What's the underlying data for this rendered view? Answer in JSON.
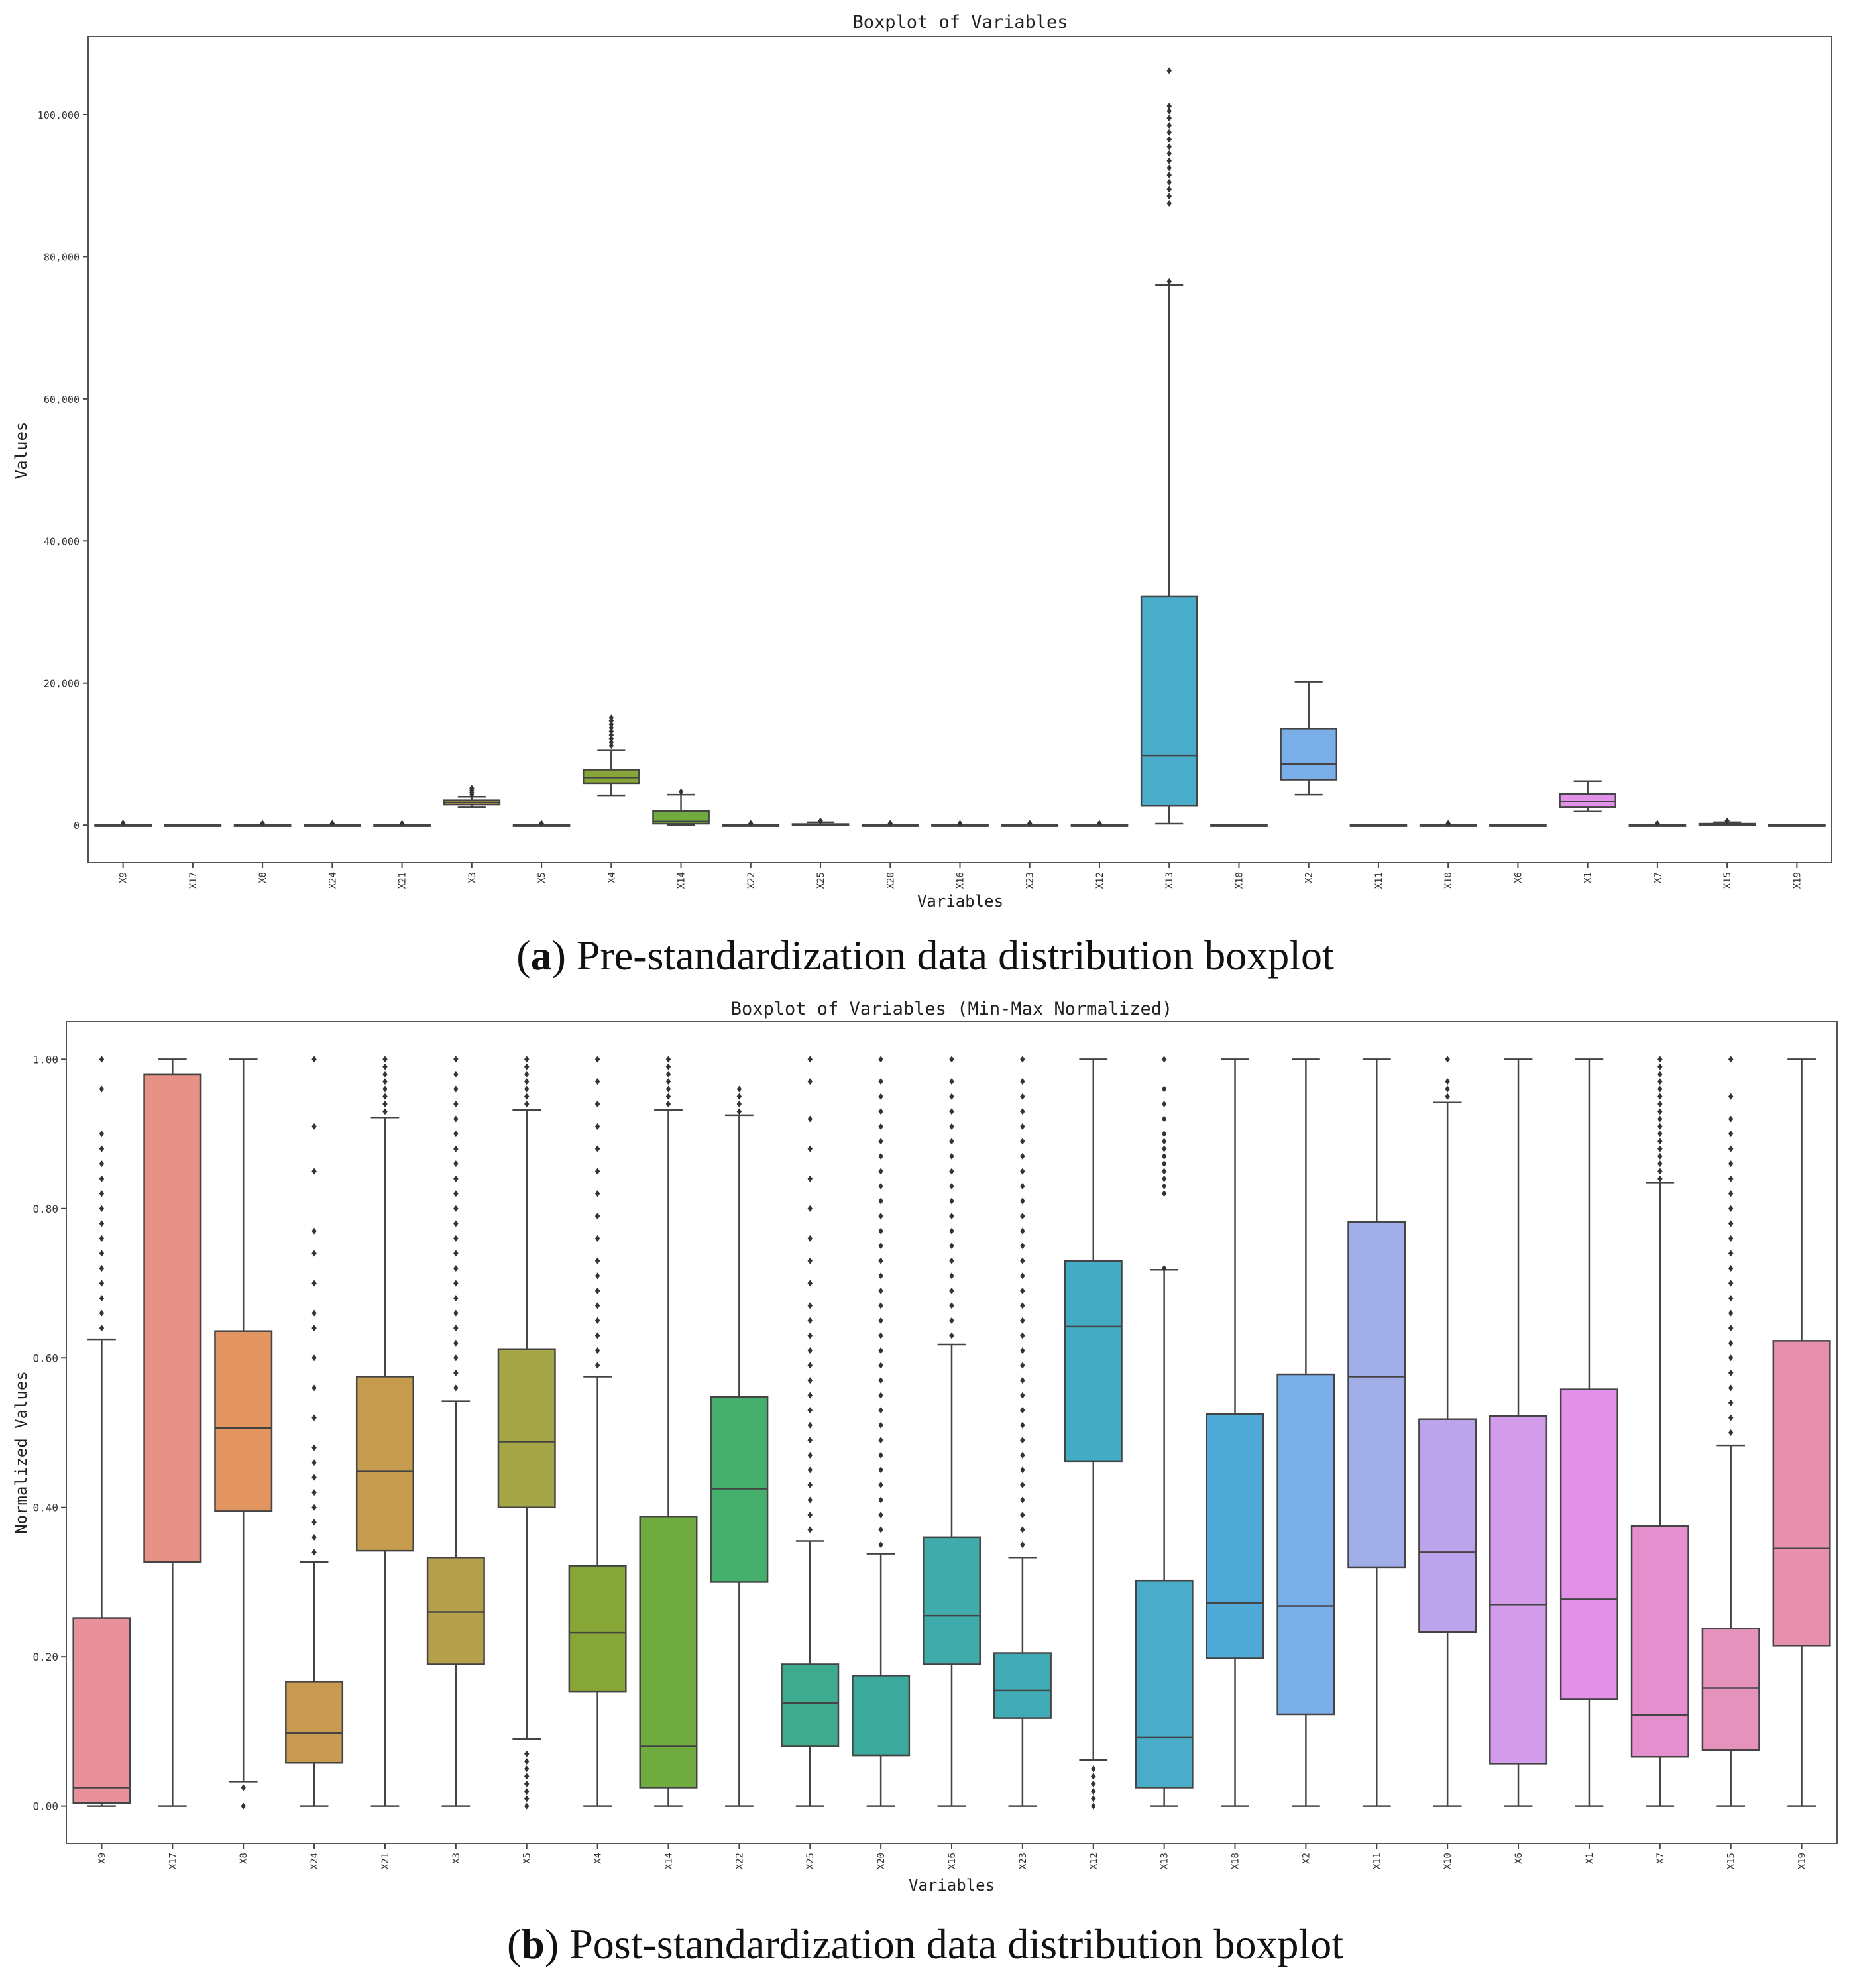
{
  "figure": {
    "caption_a_letter": "a",
    "caption_a_text": "Pre-standardization data distribution boxplot",
    "caption_b_letter": "b",
    "caption_b_text": "Post-standardization data distribution boxplot"
  },
  "chart_data": [
    {
      "id": "a",
      "type": "boxplot",
      "title": "Boxplot of Variables",
      "xlabel": "Variables",
      "ylabel": "Values",
      "ylim": [
        -5300,
        111000
      ],
      "yticks": [
        0,
        20000,
        40000,
        60000,
        80000,
        100000
      ],
      "ytick_labels": [
        "0",
        "20,000",
        "40,000",
        "60,000",
        "80,000",
        "100,000"
      ],
      "categories": [
        "X9",
        "X17",
        "X8",
        "X24",
        "X21",
        "X3",
        "X5",
        "X4",
        "X14",
        "X22",
        "X25",
        "X20",
        "X16",
        "X23",
        "X12",
        "X13",
        "X18",
        "X2",
        "X11",
        "X10",
        "X6",
        "X1",
        "X7",
        "X15",
        "X19"
      ],
      "colors": [
        "#e8919c",
        "#e79187",
        "#e39560",
        "#c99a52",
        "#c59c4e",
        "#b6a04c",
        "#a5a645",
        "#86a638",
        "#6fab3e",
        "#45b06b",
        "#3eab8e",
        "#3ba99b",
        "#40abab",
        "#41acb6",
        "#43abc3",
        "#49acc9",
        "#4fa9d7",
        "#79aee9",
        "#a2aee8",
        "#bca4ea",
        "#d29cea",
        "#e191e8",
        "#e68fcf",
        "#e592bd",
        "#e88fad"
      ],
      "boxes": [
        {
          "min": 0,
          "q1": 0,
          "median": 0,
          "q3": 0,
          "max": 0,
          "outliers": [
            300
          ]
        },
        {
          "min": 0,
          "q1": 0,
          "median": 0,
          "q3": 0,
          "max": 0,
          "outliers": []
        },
        {
          "min": 0,
          "q1": 0,
          "median": 0,
          "q3": 0,
          "max": 0,
          "outliers": [
            250
          ]
        },
        {
          "min": 0,
          "q1": 0,
          "median": 0,
          "q3": 0,
          "max": 0,
          "outliers": [
            250
          ]
        },
        {
          "min": 0,
          "q1": 0,
          "median": 0,
          "q3": 0,
          "max": 0,
          "outliers": [
            250
          ]
        },
        {
          "min": 2500,
          "q1": 2900,
          "median": 3200,
          "q3": 3500,
          "max": 4000,
          "outliers": [
            4300,
            4600,
            4900,
            5200
          ]
        },
        {
          "min": 0,
          "q1": 0,
          "median": 0,
          "q3": 0,
          "max": 0,
          "outliers": [
            250
          ]
        },
        {
          "min": 4200,
          "q1": 5900,
          "median": 6700,
          "q3": 7800,
          "max": 10500,
          "outliers": [
            11200,
            11700,
            12200,
            12700,
            13200,
            13700,
            14200,
            14700,
            15100
          ]
        },
        {
          "min": 0,
          "q1": 200,
          "median": 500,
          "q3": 2000,
          "max": 4300,
          "outliers": [
            4700
          ]
        },
        {
          "min": 0,
          "q1": 0,
          "median": 0,
          "q3": 0,
          "max": 0,
          "outliers": [
            250
          ]
        },
        {
          "min": 0,
          "q1": 0,
          "median": 0,
          "q3": 150,
          "max": 400,
          "outliers": [
            600
          ]
        },
        {
          "min": 0,
          "q1": 0,
          "median": 0,
          "q3": 0,
          "max": 0,
          "outliers": [
            250
          ]
        },
        {
          "min": 0,
          "q1": 0,
          "median": 0,
          "q3": 0,
          "max": 0,
          "outliers": [
            250
          ]
        },
        {
          "min": 0,
          "q1": 0,
          "median": 0,
          "q3": 0,
          "max": 0,
          "outliers": [
            250
          ]
        },
        {
          "min": 0,
          "q1": 0,
          "median": 0,
          "q3": 0,
          "max": 0,
          "outliers": [
            250
          ]
        },
        {
          "min": 200,
          "q1": 2700,
          "median": 9800,
          "q3": 32200,
          "max": 76000,
          "outliers": [
            76500,
            87500,
            88500,
            89500,
            90500,
            91500,
            92500,
            93500,
            94500,
            95500,
            96500,
            97500,
            98500,
            99500,
            100500,
            101200,
            106200
          ]
        },
        {
          "min": 0,
          "q1": 0,
          "median": 0,
          "q3": 0,
          "max": 0,
          "outliers": []
        },
        {
          "min": 4300,
          "q1": 6400,
          "median": 8600,
          "q3": 13600,
          "max": 20200,
          "outliers": []
        },
        {
          "min": 0,
          "q1": 0,
          "median": 0,
          "q3": 0,
          "max": 0,
          "outliers": []
        },
        {
          "min": 0,
          "q1": 0,
          "median": 0,
          "q3": 0,
          "max": 0,
          "outliers": [
            250
          ]
        },
        {
          "min": 0,
          "q1": 0,
          "median": 0,
          "q3": 0,
          "max": 0,
          "outliers": []
        },
        {
          "min": 1900,
          "q1": 2500,
          "median": 3300,
          "q3": 4400,
          "max": 6200,
          "outliers": []
        },
        {
          "min": 0,
          "q1": 0,
          "median": 0,
          "q3": 0,
          "max": 0,
          "outliers": [
            250
          ]
        },
        {
          "min": 0,
          "q1": 0,
          "median": 100,
          "q3": 200,
          "max": 400,
          "outliers": [
            600
          ]
        },
        {
          "min": 0,
          "q1": 0,
          "median": 0,
          "q3": 0,
          "max": 0,
          "outliers": []
        }
      ]
    },
    {
      "id": "b",
      "type": "boxplot",
      "title": "Boxplot of Variables (Min-Max Normalized)",
      "xlabel": "Variables",
      "ylabel": "Normalized Values",
      "ylim": [
        -0.05,
        1.05
      ],
      "yticks": [
        0,
        0.2,
        0.4,
        0.6,
        0.8,
        1.0
      ],
      "ytick_labels": [
        "0.00",
        "0.20",
        "0.40",
        "0.60",
        "0.80",
        "1.00"
      ],
      "categories": [
        "X9",
        "X17",
        "X8",
        "X24",
        "X21",
        "X3",
        "X5",
        "X4",
        "X14",
        "X22",
        "X25",
        "X20",
        "X16",
        "X23",
        "X12",
        "X13",
        "X18",
        "X2",
        "X11",
        "X10",
        "X6",
        "X1",
        "X7",
        "X15",
        "X19"
      ],
      "colors": [
        "#e8919c",
        "#e79187",
        "#e39560",
        "#c99a52",
        "#c59c4e",
        "#b6a04c",
        "#a5a645",
        "#86a638",
        "#6fab3e",
        "#45b06b",
        "#3eab8e",
        "#3ba99b",
        "#40abab",
        "#41acb6",
        "#43abc3",
        "#49acc9",
        "#4fa9d7",
        "#79aee9",
        "#a2aee8",
        "#bca4ea",
        "#d29cea",
        "#e191e8",
        "#e68fcf",
        "#e592bd",
        "#e88fad"
      ],
      "boxes": [
        {
          "min": 0.0,
          "q1": 0.004,
          "median": 0.025,
          "q3": 0.252,
          "max": 0.625,
          "outliers": [
            0.64,
            0.66,
            0.68,
            0.7,
            0.72,
            0.74,
            0.76,
            0.78,
            0.8,
            0.82,
            0.84,
            0.86,
            0.88,
            0.9,
            0.96,
            1.0
          ]
        },
        {
          "min": 0.0,
          "q1": 0.327,
          "median": 0.98,
          "q3": 0.98,
          "max": 1.0,
          "outliers": []
        },
        {
          "min": 0.033,
          "q1": 0.395,
          "median": 0.506,
          "q3": 0.636,
          "max": 1.0,
          "outliers": [
            0.0,
            0.025
          ]
        },
        {
          "min": 0.0,
          "q1": 0.058,
          "median": 0.098,
          "q3": 0.167,
          "max": 0.327,
          "outliers": [
            0.34,
            0.36,
            0.38,
            0.4,
            0.42,
            0.44,
            0.46,
            0.48,
            0.52,
            0.56,
            0.6,
            0.64,
            0.66,
            0.7,
            0.74,
            0.77,
            0.85,
            0.91,
            1.0
          ]
        },
        {
          "min": 0.0,
          "q1": 0.342,
          "median": 0.448,
          "q3": 0.575,
          "max": 0.922,
          "outliers": [
            0.93,
            0.94,
            0.95,
            0.96,
            0.97,
            0.98,
            0.99,
            1.0
          ]
        },
        {
          "min": 0.0,
          "q1": 0.19,
          "median": 0.26,
          "q3": 0.333,
          "max": 0.542,
          "outliers": [
            0.56,
            0.58,
            0.6,
            0.62,
            0.64,
            0.66,
            0.68,
            0.7,
            0.72,
            0.74,
            0.76,
            0.78,
            0.8,
            0.82,
            0.84,
            0.86,
            0.88,
            0.9,
            0.92,
            0.94,
            0.96,
            0.98,
            1.0
          ]
        },
        {
          "min": 0.09,
          "q1": 0.4,
          "median": 0.488,
          "q3": 0.612,
          "max": 0.932,
          "outliers": [
            0.0,
            0.01,
            0.02,
            0.03,
            0.04,
            0.05,
            0.06,
            0.07,
            0.94,
            0.95,
            0.96,
            0.97,
            0.98,
            0.99,
            1.0
          ]
        },
        {
          "min": 0.0,
          "q1": 0.153,
          "median": 0.232,
          "q3": 0.322,
          "max": 0.575,
          "outliers": [
            0.59,
            0.61,
            0.63,
            0.65,
            0.67,
            0.69,
            0.71,
            0.73,
            0.76,
            0.79,
            0.82,
            0.85,
            0.88,
            0.91,
            0.94,
            0.97,
            1.0
          ]
        },
        {
          "min": 0.0,
          "q1": 0.025,
          "median": 0.08,
          "q3": 0.388,
          "max": 0.932,
          "outliers": [
            0.94,
            0.95,
            0.96,
            0.97,
            0.98,
            0.99,
            1.0
          ]
        },
        {
          "min": 0.0,
          "q1": 0.3,
          "median": 0.425,
          "q3": 0.548,
          "max": 0.925,
          "outliers": [
            0.93,
            0.94,
            0.95,
            0.96
          ]
        },
        {
          "min": 0.0,
          "q1": 0.08,
          "median": 0.138,
          "q3": 0.19,
          "max": 0.355,
          "outliers": [
            0.37,
            0.39,
            0.41,
            0.43,
            0.45,
            0.47,
            0.49,
            0.51,
            0.53,
            0.55,
            0.57,
            0.59,
            0.61,
            0.63,
            0.65,
            0.67,
            0.7,
            0.73,
            0.76,
            0.8,
            0.84,
            0.88,
            0.92,
            0.97,
            1.0
          ]
        },
        {
          "min": 0.0,
          "q1": 0.068,
          "median": 0.068,
          "q3": 0.175,
          "max": 0.338,
          "outliers": [
            0.35,
            0.37,
            0.39,
            0.41,
            0.43,
            0.45,
            0.47,
            0.49,
            0.51,
            0.53,
            0.55,
            0.57,
            0.59,
            0.61,
            0.63,
            0.65,
            0.67,
            0.69,
            0.71,
            0.73,
            0.75,
            0.77,
            0.79,
            0.81,
            0.83,
            0.85,
            0.87,
            0.89,
            0.91,
            0.93,
            0.95,
            0.97,
            1.0
          ]
        },
        {
          "min": 0.0,
          "q1": 0.19,
          "median": 0.255,
          "q3": 0.36,
          "max": 0.618,
          "outliers": [
            0.63,
            0.65,
            0.67,
            0.69,
            0.71,
            0.73,
            0.75,
            0.77,
            0.79,
            0.81,
            0.83,
            0.85,
            0.87,
            0.89,
            0.91,
            0.93,
            0.95,
            0.97,
            1.0
          ]
        },
        {
          "min": 0.0,
          "q1": 0.118,
          "median": 0.155,
          "q3": 0.205,
          "max": 0.333,
          "outliers": [
            0.35,
            0.37,
            0.39,
            0.41,
            0.43,
            0.45,
            0.47,
            0.49,
            0.51,
            0.53,
            0.55,
            0.57,
            0.59,
            0.61,
            0.63,
            0.65,
            0.67,
            0.69,
            0.71,
            0.73,
            0.75,
            0.77,
            0.79,
            0.81,
            0.83,
            0.85,
            0.87,
            0.89,
            0.91,
            0.93,
            0.95,
            0.97,
            1.0
          ]
        },
        {
          "min": 0.062,
          "q1": 0.462,
          "median": 0.642,
          "q3": 0.73,
          "max": 1.0,
          "outliers": [
            0.0,
            0.01,
            0.02,
            0.03,
            0.04,
            0.05
          ]
        },
        {
          "min": 0.0,
          "q1": 0.025,
          "median": 0.092,
          "q3": 0.302,
          "max": 0.718,
          "outliers": [
            0.72,
            0.82,
            0.83,
            0.84,
            0.85,
            0.86,
            0.87,
            0.88,
            0.89,
            0.9,
            0.92,
            0.94,
            0.96,
            1.0
          ]
        },
        {
          "min": 0.0,
          "q1": 0.198,
          "median": 0.272,
          "q3": 0.525,
          "max": 1.0,
          "outliers": []
        },
        {
          "min": 0.0,
          "q1": 0.123,
          "median": 0.268,
          "q3": 0.578,
          "max": 1.0,
          "outliers": []
        },
        {
          "min": 0.0,
          "q1": 0.32,
          "median": 0.575,
          "q3": 0.782,
          "max": 1.0,
          "outliers": []
        },
        {
          "min": 0.0,
          "q1": 0.233,
          "median": 0.34,
          "q3": 0.518,
          "max": 0.942,
          "outliers": [
            0.95,
            0.96,
            0.97,
            1.0
          ]
        },
        {
          "min": 0.0,
          "q1": 0.057,
          "median": 0.27,
          "q3": 0.522,
          "max": 1.0,
          "outliers": []
        },
        {
          "min": 0.0,
          "q1": 0.143,
          "median": 0.277,
          "q3": 0.558,
          "max": 1.0,
          "outliers": []
        },
        {
          "min": 0.0,
          "q1": 0.066,
          "median": 0.122,
          "q3": 0.375,
          "max": 0.835,
          "outliers": [
            0.84,
            0.85,
            0.86,
            0.87,
            0.88,
            0.89,
            0.9,
            0.91,
            0.92,
            0.93,
            0.94,
            0.95,
            0.96,
            0.97,
            0.98,
            0.99,
            1.0
          ]
        },
        {
          "min": 0.0,
          "q1": 0.075,
          "median": 0.158,
          "q3": 0.238,
          "max": 0.483,
          "outliers": [
            0.5,
            0.52,
            0.54,
            0.56,
            0.58,
            0.6,
            0.62,
            0.64,
            0.66,
            0.68,
            0.7,
            0.72,
            0.74,
            0.76,
            0.78,
            0.8,
            0.82,
            0.84,
            0.86,
            0.88,
            0.9,
            0.92,
            0.95,
            1.0
          ]
        },
        {
          "min": 0.0,
          "q1": 0.215,
          "median": 0.345,
          "q3": 0.623,
          "max": 1.0,
          "outliers": []
        }
      ]
    }
  ]
}
